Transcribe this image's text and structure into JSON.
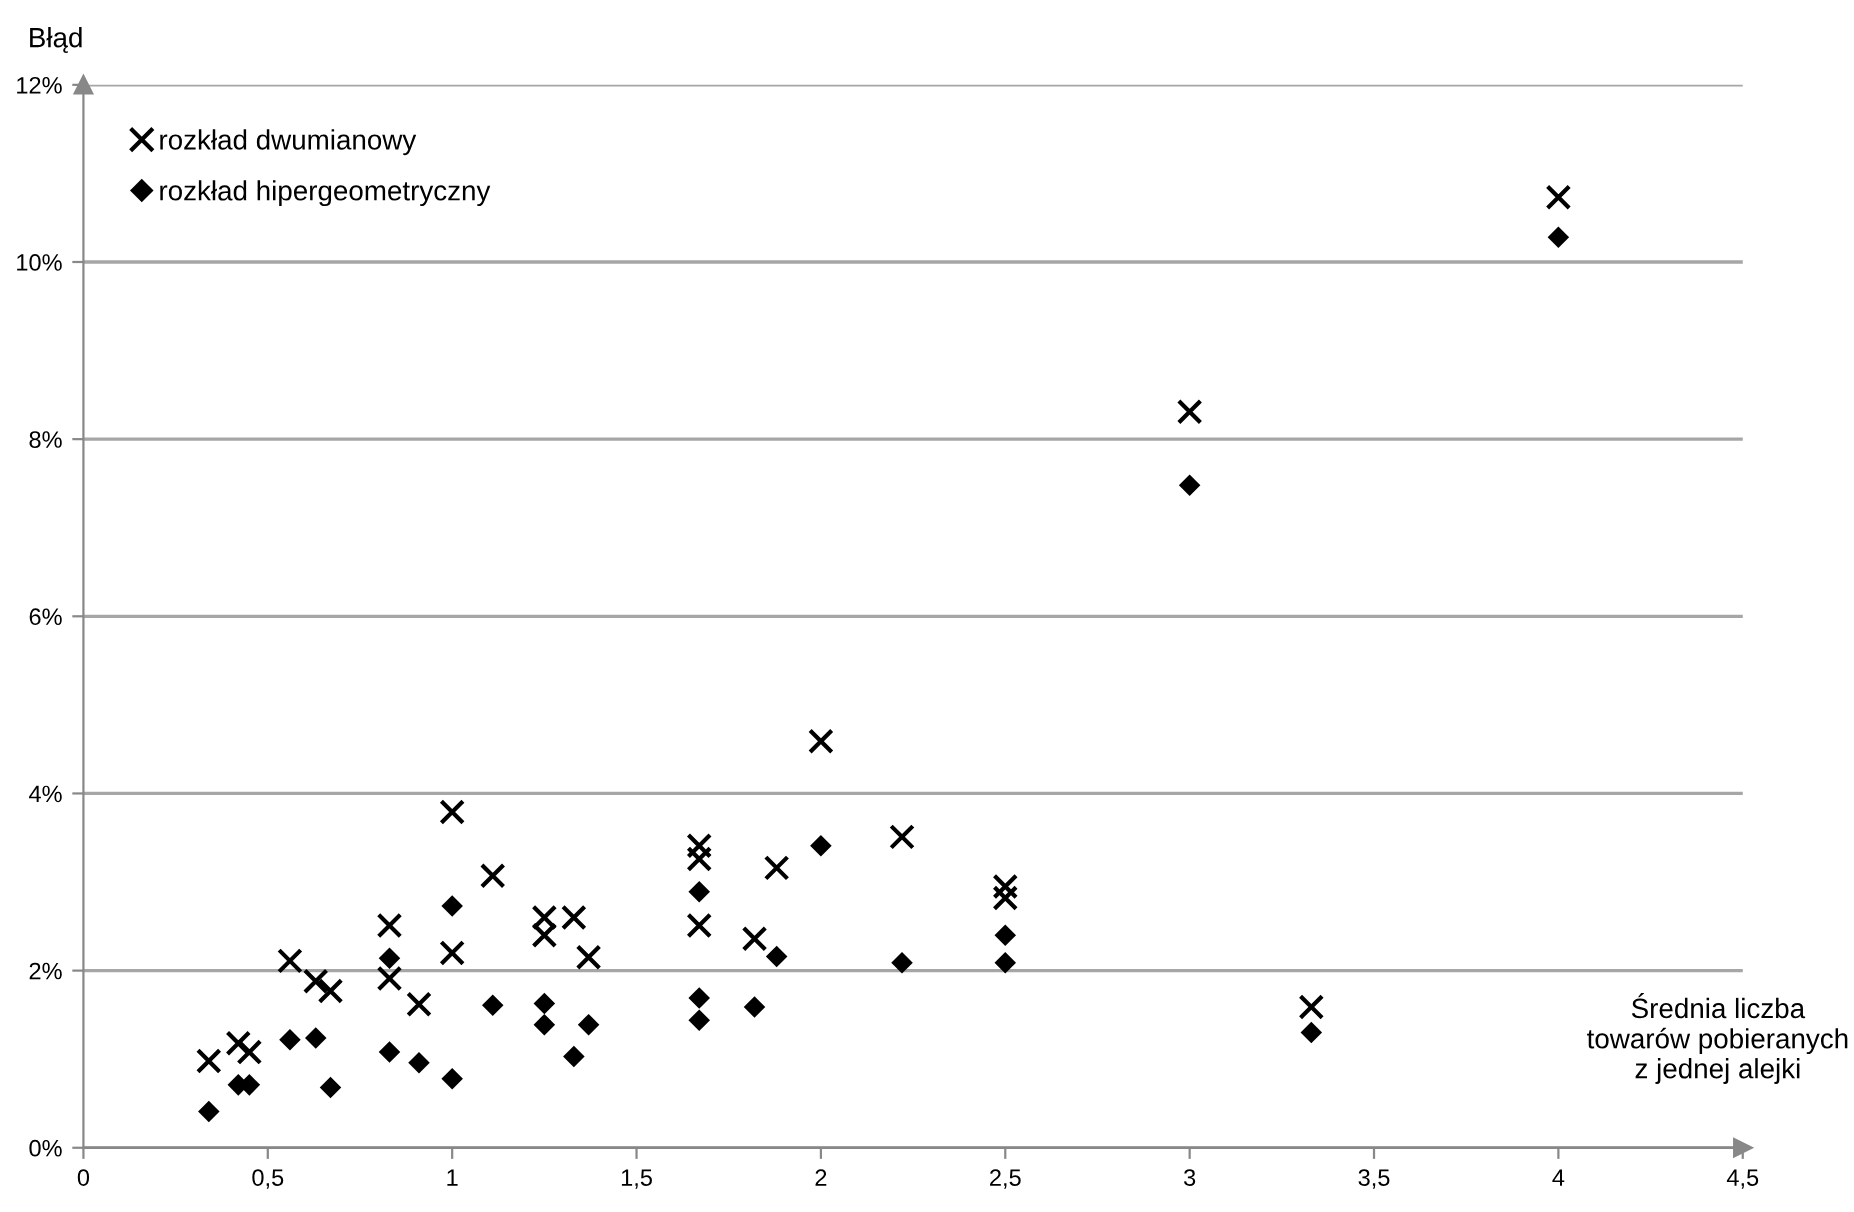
{
  "chart_data": {
    "type": "scatter",
    "ylabel": "Błąd",
    "xlabel": "Średnia liczba\ntowarów pobieranych\nz jednej alejki",
    "xlim": [
      0,
      4.5
    ],
    "xticks": [
      0,
      {
        "value": 0.5,
        "label": "0,5"
      },
      1,
      {
        "value": 1.5,
        "label": "1,5"
      },
      2,
      {
        "value": 2.5,
        "label": "2,5"
      },
      3,
      {
        "value": 3.5,
        "label": "3,5"
      },
      4,
      {
        "value": 4.5,
        "label": "4,5"
      }
    ],
    "ylim": [
      0,
      12
    ],
    "yticks": [
      {
        "value": 0,
        "label": "0%"
      },
      {
        "value": 2,
        "label": "2%"
      },
      {
        "value": 4,
        "label": "4%"
      },
      {
        "value": 6,
        "label": "6%"
      },
      {
        "value": 8,
        "label": "8%"
      },
      {
        "value": 10,
        "label": "10%"
      },
      {
        "value": 12,
        "label": "12%"
      }
    ],
    "grid": "y",
    "legend": "top left",
    "series": [
      {
        "name": "rozkład dwumianowy",
        "color": "#000000",
        "marker": "cross",
        "x": [
          0.34,
          0.42,
          0.45,
          0.56,
          0.63,
          0.67,
          0.83,
          0.83,
          0.91,
          1.0,
          1.0,
          1.11,
          1.25,
          1.25,
          1.33,
          1.37,
          1.67,
          1.67,
          1.67,
          1.82,
          1.88,
          2.0,
          2.22,
          2.5,
          2.5,
          3.0,
          3.33,
          4.0
        ],
        "values": [
          0.98,
          1.18,
          1.08,
          2.11,
          1.88,
          1.77,
          2.51,
          1.91,
          1.62,
          3.79,
          2.2,
          3.07,
          2.6,
          2.4,
          2.6,
          2.15,
          3.41,
          3.26,
          2.51,
          2.36,
          3.16,
          4.59,
          3.51,
          2.95,
          2.82,
          8.31,
          1.59,
          10.73
        ]
      },
      {
        "name": "rozkład hipergeometryczny",
        "color": "#000000",
        "marker": "diamond",
        "x": [
          0.34,
          0.42,
          0.45,
          0.56,
          0.63,
          0.67,
          0.83,
          0.83,
          0.91,
          1.0,
          1.0,
          1.11,
          1.25,
          1.25,
          1.33,
          1.37,
          1.67,
          1.67,
          1.67,
          1.82,
          1.88,
          2.0,
          2.22,
          2.5,
          2.5,
          3.0,
          3.33,
          4.0
        ],
        "values": [
          0.41,
          0.71,
          0.71,
          1.22,
          1.24,
          0.68,
          2.14,
          1.08,
          0.96,
          2.73,
          0.78,
          1.61,
          1.63,
          1.39,
          1.03,
          1.39,
          2.89,
          1.69,
          1.44,
          1.59,
          2.16,
          3.41,
          2.09,
          2.4,
          2.09,
          7.48,
          1.3,
          10.28
        ]
      }
    ]
  }
}
